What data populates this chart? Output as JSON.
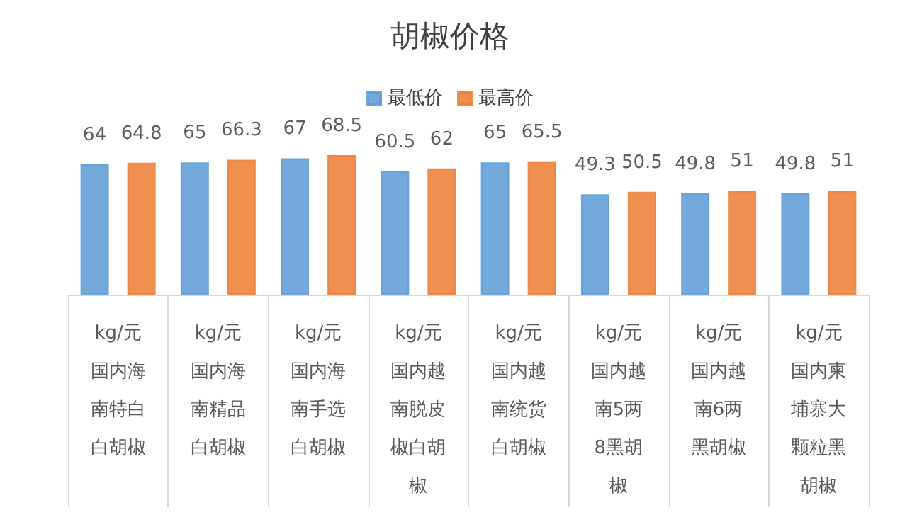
{
  "chart_data": {
    "type": "bar",
    "title": "胡椒价格",
    "categories": [
      "kg/元国内海南特白白胡椒",
      "kg/元国内海南精品白胡椒",
      "kg/元国内海南手选白胡椒",
      "kg/元国内越南脱皮椒白胡椒",
      "kg/元国内越南统货白胡椒",
      "kg/元国内越南5两8黑胡椒",
      "kg/元国内越南6两黑胡椒",
      "kg/元国内柬埔寨大颗粒黑胡椒"
    ],
    "series": [
      {
        "name": "最低价",
        "color": "#5b9bd5",
        "values": [
          64,
          65,
          67,
          60.5,
          65,
          49.3,
          49.8,
          49.8
        ]
      },
      {
        "name": "最高价",
        "color": "#ed7d31",
        "values": [
          64.8,
          66.3,
          68.5,
          62,
          65.5,
          50.5,
          51,
          51
        ]
      }
    ],
    "data_labels": true,
    "legend": "top",
    "grid": false
  }
}
